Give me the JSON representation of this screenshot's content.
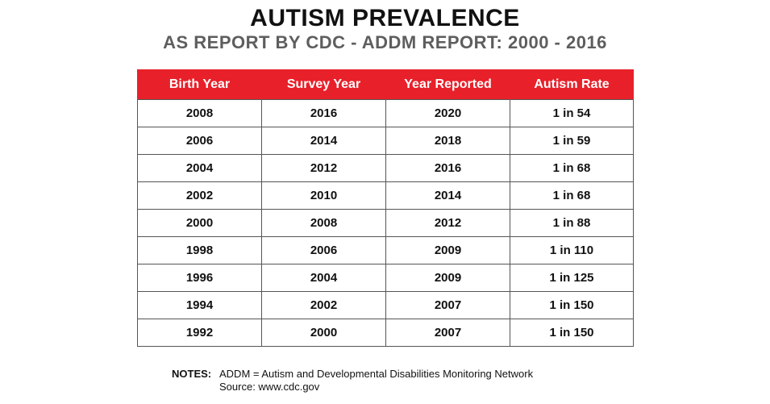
{
  "header": {
    "title": "AUTISM PREVALENCE",
    "subtitle": "AS REPORT BY CDC - ADDM REPORT:  2000 - 2016"
  },
  "table": {
    "columns": [
      "Birth Year",
      "Survey Year",
      "Year Reported",
      "Autism Rate"
    ],
    "rows": [
      [
        "2008",
        "2016",
        "2020",
        "1 in 54"
      ],
      [
        "2006",
        "2014",
        "2018",
        "1 in 59"
      ],
      [
        "2004",
        "2012",
        "2016",
        "1 in 68"
      ],
      [
        "2002",
        "2010",
        "2014",
        "1 in 68"
      ],
      [
        "2000",
        "2008",
        "2012",
        "1 in 88"
      ],
      [
        "1998",
        "2006",
        "2009",
        "1 in 110"
      ],
      [
        "1996",
        "2004",
        "2009",
        "1 in 125"
      ],
      [
        "1994",
        "2002",
        "2007",
        "1 in 150"
      ],
      [
        "1992",
        "2000",
        "2007",
        "1 in 150"
      ]
    ]
  },
  "notes": {
    "label": "NOTES:",
    "line1": "ADDM  = Autism and Developmental Disabilities Monitoring Network",
    "line2": "Source:  www.cdc.gov"
  },
  "colors": {
    "header_bg": "#e8202a",
    "header_text": "#ffffff",
    "subtitle_text": "#5e5e5e",
    "border": "#555555"
  }
}
